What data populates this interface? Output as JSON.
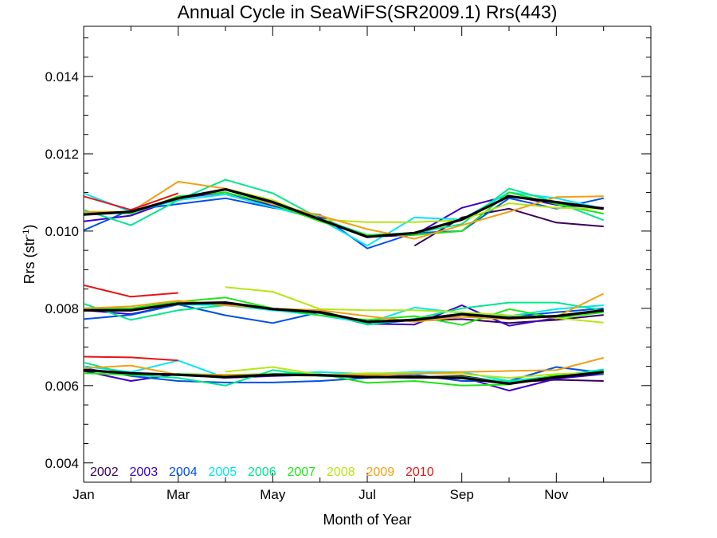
{
  "chart_data": {
    "type": "line",
    "title": "Annual Cycle in SeaWiFS(SR2009.1) Rrs(443)",
    "xlabel": "Month of Year",
    "ylabel_main": "Rrs (str",
    "ylabel_sup": "-1",
    "ylabel_close": ")",
    "xlim": [
      1,
      13
    ],
    "ylim": [
      0.0035,
      0.0153
    ],
    "x_ticks": [
      {
        "value": 1,
        "label": "Jan"
      },
      {
        "value": 3,
        "label": "Mar"
      },
      {
        "value": 5,
        "label": "May"
      },
      {
        "value": 7,
        "label": "Jul"
      },
      {
        "value": 9,
        "label": "Sep"
      },
      {
        "value": 11,
        "label": "Nov"
      }
    ],
    "x_minor_ticks": [
      2,
      4,
      6,
      8,
      10,
      12
    ],
    "y_ticks": [
      {
        "value": 0.004,
        "label": "0.004"
      },
      {
        "value": 0.006,
        "label": "0.006"
      },
      {
        "value": 0.008,
        "label": "0.008"
      },
      {
        "value": 0.01,
        "label": "0.010"
      },
      {
        "value": 0.012,
        "label": "0.012"
      },
      {
        "value": 0.014,
        "label": "0.014"
      }
    ],
    "y_minor_step": 0.0005,
    "grid": false,
    "legend_position": "bottom-left",
    "x": [
      1,
      2,
      3,
      4,
      5,
      6,
      7,
      8,
      9,
      10,
      11,
      12
    ],
    "series": [
      {
        "name": "2002",
        "color": "#3a0059",
        "bands": [
          [
            null,
            null,
            null,
            null,
            null,
            null,
            null,
            0.00962,
            0.01035,
            0.01058,
            0.01022,
            0.01012
          ],
          [
            null,
            null,
            null,
            null,
            null,
            null,
            null,
            0.00768,
            0.00772,
            0.00762,
            0.0077,
            0.00783
          ],
          [
            null,
            null,
            null,
            null,
            null,
            null,
            null,
            0.00622,
            0.00625,
            0.00608,
            0.00615,
            0.00612
          ]
        ]
      },
      {
        "name": "2003",
        "color": "#3c00c8",
        "bands": [
          [
            0.01025,
            0.0104,
            0.01085,
            0.011,
            0.01065,
            0.01035,
            0.00985,
            0.0099,
            0.0106,
            0.01092,
            0.01068,
            0.0106
          ],
          [
            0.00795,
            0.00785,
            0.0081,
            0.00812,
            0.00795,
            0.00788,
            0.0076,
            0.00758,
            0.00808,
            0.00755,
            0.00775,
            0.00793
          ],
          [
            0.00638,
            0.00612,
            0.0063,
            0.0062,
            0.00625,
            0.00628,
            0.00622,
            0.0062,
            0.00622,
            0.00587,
            0.00618,
            0.0063
          ]
        ]
      },
      {
        "name": "2004",
        "color": "#0050e6",
        "bands": [
          [
            0.01002,
            0.01055,
            0.0107,
            0.01085,
            0.0106,
            0.01042,
            0.00955,
            0.00995,
            0.01,
            0.01085,
            0.01058,
            0.01085
          ],
          [
            0.00772,
            0.00783,
            0.0081,
            0.00782,
            0.00762,
            0.0079,
            0.00758,
            0.0077,
            0.00778,
            0.00778,
            0.0079,
            0.008
          ],
          [
            0.00645,
            0.00625,
            0.00612,
            0.00608,
            0.00608,
            0.00612,
            0.0062,
            0.00628,
            0.00612,
            0.00612,
            0.00648,
            0.00633
          ]
        ]
      },
      {
        "name": "2005",
        "color": "#00e6f0",
        "bands": [
          [
            0.01098,
            0.0105,
            0.0108,
            0.01095,
            0.01062,
            0.0103,
            0.00962,
            0.01035,
            0.0103,
            0.011,
            0.01085,
            0.01058
          ],
          [
            0.00797,
            0.00797,
            0.0081,
            0.00808,
            0.00795,
            0.00782,
            0.00762,
            0.00802,
            0.00788,
            0.0078,
            0.00798,
            0.00808
          ],
          [
            0.0065,
            0.00635,
            0.00665,
            0.0062,
            0.0063,
            0.00635,
            0.0063,
            0.00635,
            0.00635,
            0.00612,
            0.00625,
            0.00642
          ]
        ]
      },
      {
        "name": "2006",
        "color": "#00e68c",
        "bands": [
          [
            0.01055,
            0.01015,
            0.0108,
            0.01133,
            0.01098,
            0.01032,
            0.0099,
            0.00995,
            0.01018,
            0.0111,
            0.01075,
            0.01028
          ],
          [
            0.00812,
            0.0077,
            0.00795,
            0.00808,
            0.00798,
            0.00795,
            0.00758,
            0.00773,
            0.008,
            0.00815,
            0.00815,
            0.00795
          ],
          [
            0.0066,
            0.00628,
            0.0062,
            0.006,
            0.0064,
            0.00625,
            0.00625,
            0.00622,
            0.00622,
            0.0061,
            0.00625,
            0.0064
          ]
        ]
      },
      {
        "name": "2007",
        "color": "#1ee614",
        "bands": [
          [
            0.0105,
            0.01045,
            0.0109,
            0.011,
            0.0107,
            0.01025,
            0.0099,
            0.0099,
            0.01,
            0.011,
            0.0107,
            0.01045
          ],
          [
            0.008,
            0.008,
            0.00817,
            0.00828,
            0.008,
            0.00782,
            0.0077,
            0.0078,
            0.00757,
            0.00798,
            0.00775,
            0.0079
          ],
          [
            0.00632,
            0.00628,
            0.0063,
            0.00628,
            0.0063,
            0.0063,
            0.00607,
            0.00612,
            0.006,
            0.00603,
            0.00628,
            0.00632
          ]
        ]
      },
      {
        "name": "2008",
        "color": "#b4e614",
        "bands": [
          [
            null,
            null,
            null,
            0.0111,
            0.0108,
            0.0103,
            0.01023,
            0.01023,
            0.01028,
            0.01072,
            0.0106,
            0.01058
          ],
          [
            null,
            null,
            null,
            0.00855,
            0.00843,
            0.00798,
            0.00795,
            0.00795,
            0.0079,
            0.00782,
            0.00775,
            0.00763
          ],
          [
            null,
            null,
            null,
            0.00636,
            0.00648,
            0.00628,
            0.00632,
            0.00632,
            0.0063,
            0.0062,
            0.0063,
            0.00633
          ]
        ]
      },
      {
        "name": "2009",
        "color": "#f0a014",
        "bands": [
          [
            0.0105,
            0.0105,
            0.01128,
            0.0111,
            0.0107,
            0.0104,
            0.01005,
            0.0098,
            0.01015,
            0.0105,
            0.01088,
            0.0109
          ],
          [
            0.008,
            0.00805,
            0.0082,
            0.00808,
            0.008,
            0.00795,
            0.0078,
            0.00765,
            0.00778,
            0.00772,
            0.00778,
            0.00838
          ],
          [
            0.00645,
            0.00652,
            0.00628,
            0.00628,
            0.00628,
            0.00628,
            0.00628,
            0.0063,
            0.00635,
            0.00638,
            0.0064,
            0.00672
          ]
        ]
      },
      {
        "name": "2010",
        "color": "#e61414",
        "bands": [
          [
            0.0109,
            0.01055,
            0.01098,
            null,
            null,
            null,
            null,
            null,
            null,
            null,
            null,
            null
          ],
          [
            0.0086,
            0.0083,
            0.0084,
            null,
            null,
            null,
            null,
            null,
            null,
            null,
            null,
            null
          ],
          [
            0.00675,
            0.00673,
            0.00665,
            null,
            null,
            null,
            null,
            null,
            null,
            null,
            null,
            null
          ]
        ]
      }
    ],
    "mean": {
      "color": "#000000",
      "bands": [
        [
          0.01043,
          0.0105,
          0.01085,
          0.01108,
          0.01075,
          0.0103,
          0.00985,
          0.00995,
          0.0103,
          0.0109,
          0.01075,
          0.01058
        ],
        [
          0.00795,
          0.00795,
          0.00812,
          0.00815,
          0.00798,
          0.0079,
          0.00765,
          0.0077,
          0.00785,
          0.00775,
          0.0078,
          0.00795
        ],
        [
          0.0064,
          0.00632,
          0.00628,
          0.00622,
          0.00628,
          0.00627,
          0.00622,
          0.00622,
          0.0062,
          0.00605,
          0.00622,
          0.00635
        ]
      ]
    }
  }
}
